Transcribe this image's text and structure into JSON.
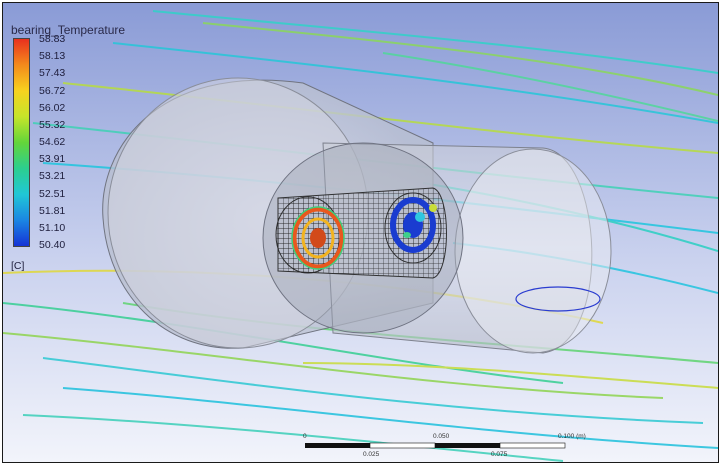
{
  "legend": {
    "title": "bearing_Temperature",
    "ticks": [
      "58.83",
      "58.13",
      "57.43",
      "56.72",
      "56.02",
      "55.32",
      "54.62",
      "53.91",
      "53.21",
      "52.51",
      "51.81",
      "51.10",
      "50.40"
    ],
    "unit": "[C]",
    "gradient_colors": [
      "#e8301e",
      "#f48a1c",
      "#f7d21f",
      "#c6e52a",
      "#63d53a",
      "#2ccf8f",
      "#20c7d6",
      "#1b86e3",
      "#1533d6"
    ]
  },
  "scale_bar": {
    "top_labels": [
      "0",
      "0.050",
      "0.100 (m)"
    ],
    "bottom_labels": [
      "0.025",
      "0.075"
    ]
  },
  "colors": {
    "background_top": "#8a9bd6",
    "background_bottom": "#f2f4fb",
    "hot_ring": "#e8581e",
    "cold_ring": "#1a3cd0"
  }
}
